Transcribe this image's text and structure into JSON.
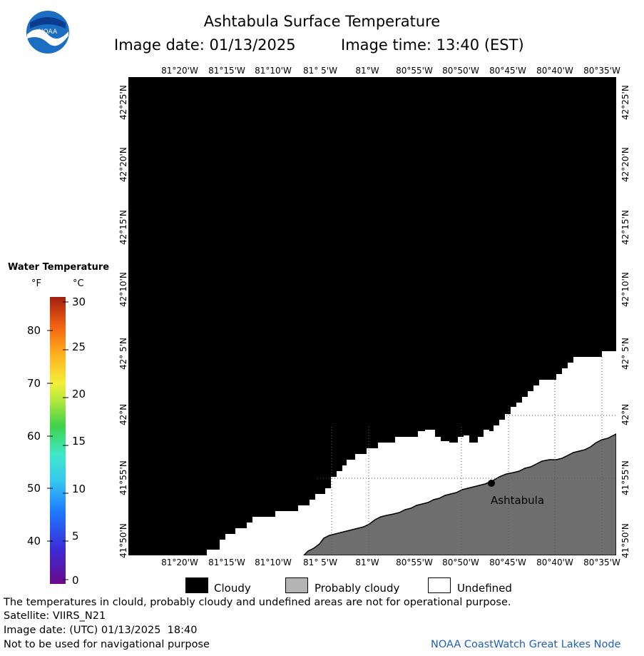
{
  "header": {
    "title": "Ashtabula Surface Temperature",
    "image_date": "Image date: 01/13/2025",
    "image_time": "Image time: 13:40 (EST)"
  },
  "map": {
    "lon_labels": [
      "81°20'W",
      "81°15'W",
      "81°10'W",
      "81° 5'W",
      "81°W",
      "80°55'W",
      "80°50'W",
      "80°45'W",
      "80°40'W",
      "80°35'W"
    ],
    "lat_labels": [
      "42°25'N",
      "42°20'N",
      "42°15'N",
      "42°10'N",
      "42° 5'N",
      "42°N",
      "41°55'N",
      "41°50'N"
    ],
    "place_label": "Ashtabula",
    "colors": {
      "cloudy": "#000000",
      "probably_cloudy": "#6e6e6e",
      "undefined": "#ffffff"
    }
  },
  "legend": {
    "title": "Water Temperature",
    "unit_f": "°F",
    "unit_c": "°C",
    "f_ticks": [
      "80",
      "70",
      "60",
      "50",
      "40"
    ],
    "c_ticks": [
      "30",
      "25",
      "20",
      "15",
      "10",
      "5",
      "0"
    ]
  },
  "key": {
    "cloudy": "Cloudy",
    "probably_cloudy": "Probably cloudy",
    "undefined": "Undefined"
  },
  "footer": {
    "note": "The temperatures in clould, probably cloudy and undefined areas are not for operational purpose.",
    "satellite": "Satellite: VIIRS_N21",
    "utc_date": "Image date: (UTC) 01/13/2025  18:40",
    "nav_note": "Not to be used for navigational purpose",
    "node": "NOAA CoastWatch Great Lakes Node"
  }
}
